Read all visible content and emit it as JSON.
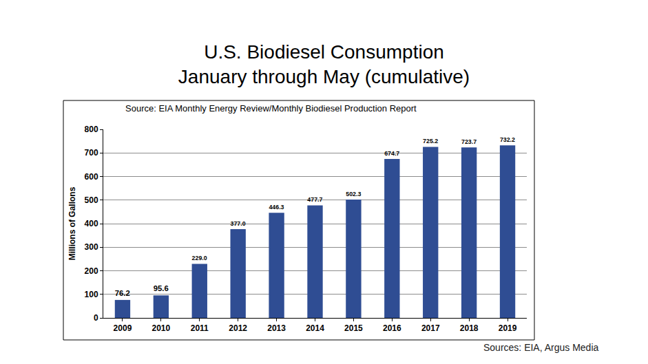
{
  "chart_data": {
    "type": "bar",
    "title": "U.S. Biodiesel Consumption",
    "subtitle": "January through May (cumulative)",
    "annotations": [
      "Source: EIA Monthly Energy Review/Monthly Biodiesel Production Report",
      "Sources: EIA, Argus Media"
    ],
    "y_label": "Millions of Gallons",
    "categories": [
      "2009",
      "2010",
      "2011",
      "2012",
      "2013",
      "2014",
      "2015",
      "2016",
      "2017",
      "2018",
      "2019"
    ],
    "values": [
      76.2,
      95.6,
      229.0,
      377.0,
      446.3,
      477.7,
      502.3,
      674.7,
      725.2,
      723.7,
      732.2
    ],
    "value_labels": [
      "76.2",
      "95.6",
      "229.0",
      "377.0",
      "446.3",
      "477.7",
      "502.3",
      "674.7",
      "725.2",
      "723.7",
      "732.2"
    ],
    "color": "#2f4d93",
    "ylim": [
      0,
      800
    ],
    "yticks": [
      0,
      100,
      200,
      300,
      400,
      500,
      600,
      700,
      800
    ],
    "grid": true,
    "data_labels": true
  }
}
